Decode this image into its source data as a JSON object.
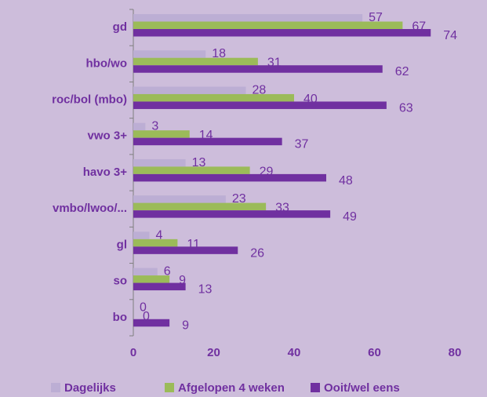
{
  "chart_data": {
    "type": "hbar",
    "categories": [
      "gd",
      "hbo/wo",
      "roc/bol (mbo)",
      "vwo 3+",
      "havo 3+",
      "vmbo/lwoo/...",
      "gl",
      "so",
      "bo"
    ],
    "series": [
      {
        "name": "Dagelijks",
        "color": "#bcaed4",
        "values": [
          57,
          18,
          28,
          3,
          13,
          23,
          4,
          6,
          0
        ]
      },
      {
        "name": "Afgelopen 4 weken",
        "color": "#9bbb59",
        "values": [
          67,
          31,
          40,
          14,
          29,
          33,
          11,
          9,
          0
        ]
      },
      {
        "name": "Ooit/wel eens",
        "color": "#7030a0",
        "values": [
          74,
          62,
          63,
          37,
          48,
          49,
          26,
          13,
          9
        ]
      }
    ],
    "xlim": [
      0,
      80
    ],
    "xticks": [
      0,
      20,
      40,
      60,
      80
    ],
    "legend": "bottom"
  }
}
